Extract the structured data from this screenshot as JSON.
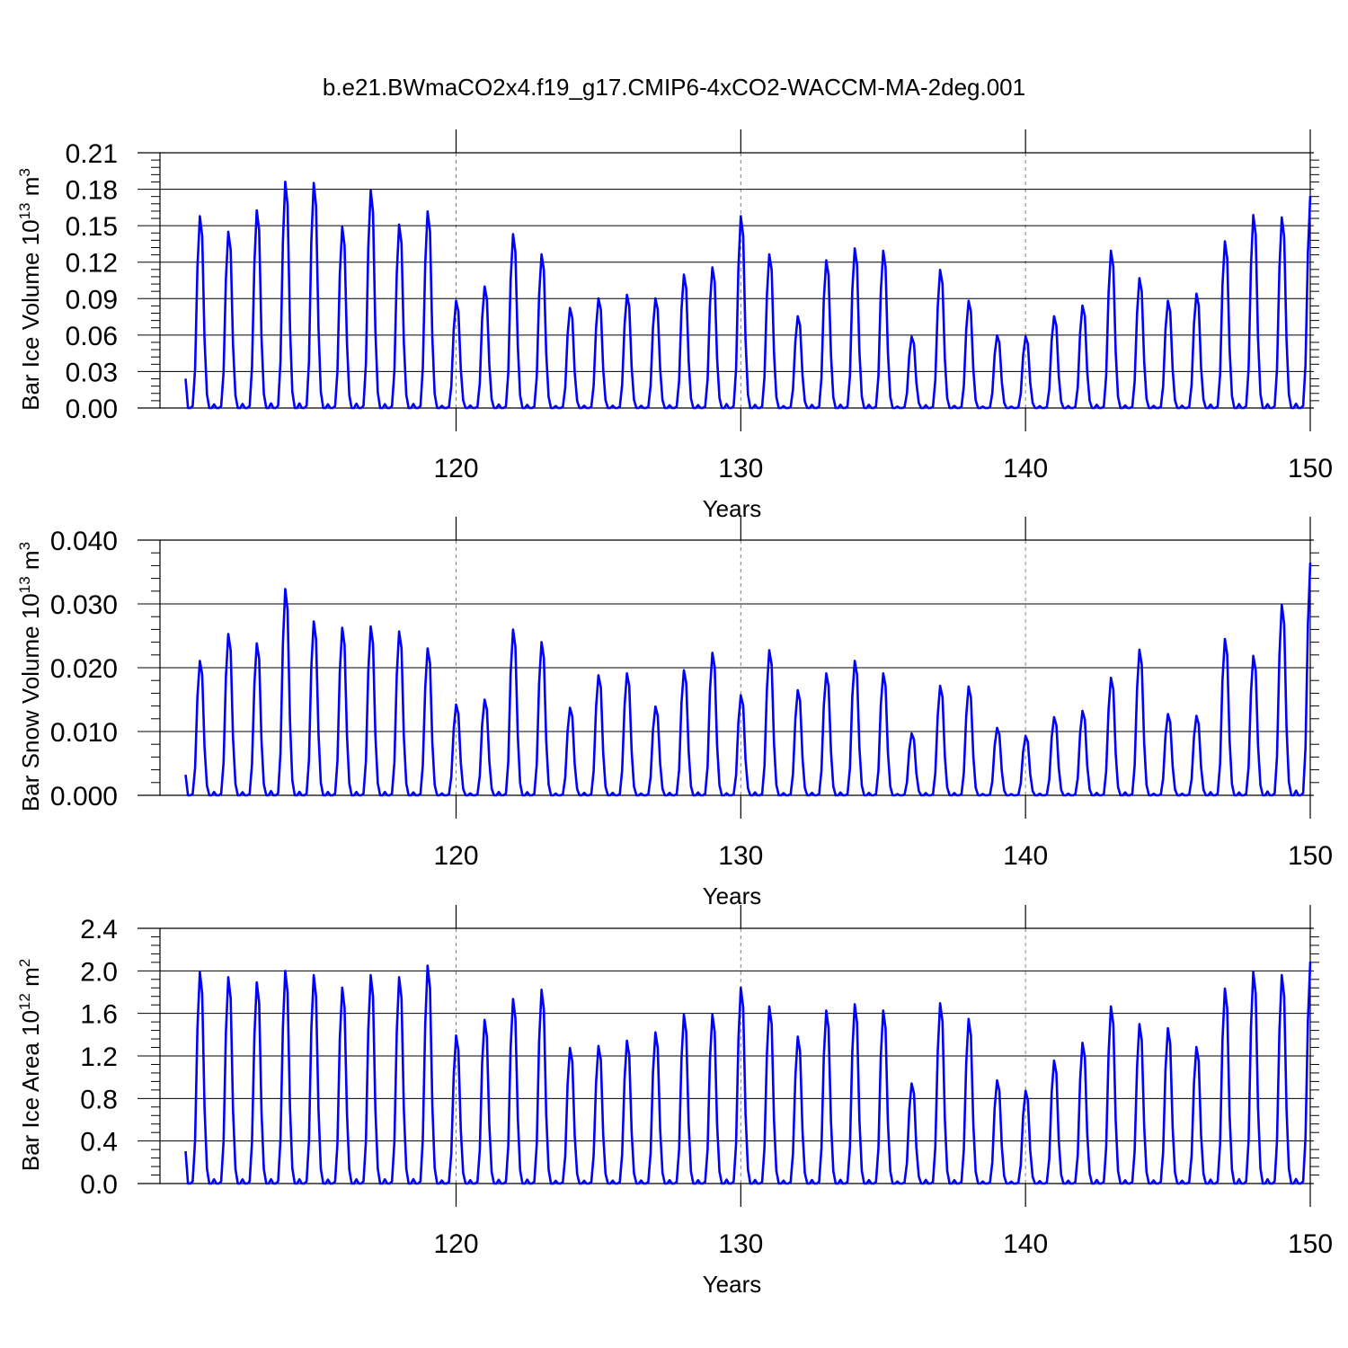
{
  "title": "b.e21.BWmaCO2x4.f19_g17.CMIP6-4xCO2-WACCM-MA-2deg.001",
  "colors": {
    "line": "#0000ff",
    "axis": "#000000",
    "grid": "#808080"
  },
  "chart_data": [
    {
      "type": "line",
      "ylabel": "Bar Ice Volume",
      "yunit_base": "10",
      "yunit_exp": "13",
      "yunit_suffix": "m",
      "yunit_pow": "3",
      "xlabel": "Years",
      "xlim": [
        109.6,
        150
      ],
      "ylim": [
        0,
        0.21
      ],
      "yticks": [
        "0.00",
        "0.03",
        "0.06",
        "0.09",
        "0.12",
        "0.15",
        "0.18",
        "0.21"
      ],
      "xticks": [
        "120",
        "130",
        "140",
        "150"
      ],
      "grid_x": [
        120,
        130,
        140
      ],
      "start_year": 110.5,
      "peaks": [
        0.161,
        0.148,
        0.166,
        0.19,
        0.189,
        0.152,
        0.183,
        0.154,
        0.165,
        0.09,
        0.102,
        0.146,
        0.129,
        0.084,
        0.092,
        0.095,
        0.092,
        0.112,
        0.118,
        0.161,
        0.129,
        0.077,
        0.124,
        0.134,
        0.132,
        0.06,
        0.116,
        0.09,
        0.061,
        0.06,
        0.077,
        0.086,
        0.132,
        0.109,
        0.09,
        0.096,
        0.14,
        0.162,
        0.16,
        0.178
      ]
    },
    {
      "type": "line",
      "ylabel": "Bar Snow Volume",
      "yunit_base": "10",
      "yunit_exp": "13",
      "yunit_suffix": "m",
      "yunit_pow": "3",
      "xlabel": "Years",
      "xlim": [
        109.6,
        150
      ],
      "ylim": [
        0,
        0.04
      ],
      "yticks": [
        "0.000",
        "0.010",
        "0.020",
        "0.030",
        "0.040"
      ],
      "xticks": [
        "120",
        "130",
        "140",
        "150"
      ],
      "grid_x": [
        120,
        130,
        140
      ],
      "start_year": 110.5,
      "peaks": [
        0.0215,
        0.0258,
        0.0243,
        0.033,
        0.0278,
        0.0268,
        0.027,
        0.0262,
        0.0235,
        0.0145,
        0.0153,
        0.0265,
        0.0245,
        0.014,
        0.0192,
        0.0195,
        0.0142,
        0.02,
        0.0228,
        0.016,
        0.0232,
        0.0168,
        0.0195,
        0.0215,
        0.0195,
        0.0099,
        0.0175,
        0.0174,
        0.0108,
        0.0095,
        0.0125,
        0.0135,
        0.0188,
        0.0233,
        0.013,
        0.0127,
        0.025,
        0.0223,
        0.0305,
        0.0372
      ]
    },
    {
      "type": "line",
      "ylabel": "Bar Ice Area",
      "yunit_base": "10",
      "yunit_exp": "12",
      "yunit_suffix": "m",
      "yunit_pow": "2",
      "xlabel": "Years",
      "xlim": [
        109.6,
        150
      ],
      "ylim": [
        0,
        2.4
      ],
      "yticks": [
        "0.0",
        "0.4",
        "0.8",
        "1.2",
        "1.6",
        "2.0",
        "2.4"
      ],
      "xticks": [
        "120",
        "130",
        "140",
        "150"
      ],
      "grid_x": [
        120,
        130,
        140
      ],
      "start_year": 110.5,
      "peaks": [
        2.03,
        1.98,
        1.93,
        2.04,
        2.0,
        1.88,
        2.0,
        1.98,
        2.09,
        1.42,
        1.57,
        1.77,
        1.86,
        1.3,
        1.32,
        1.37,
        1.45,
        1.62,
        1.62,
        1.88,
        1.7,
        1.41,
        1.66,
        1.72,
        1.66,
        0.96,
        1.73,
        1.58,
        0.99,
        0.89,
        1.18,
        1.35,
        1.7,
        1.53,
        1.49,
        1.31,
        1.87,
        2.03,
        2.0,
        2.13
      ]
    }
  ]
}
